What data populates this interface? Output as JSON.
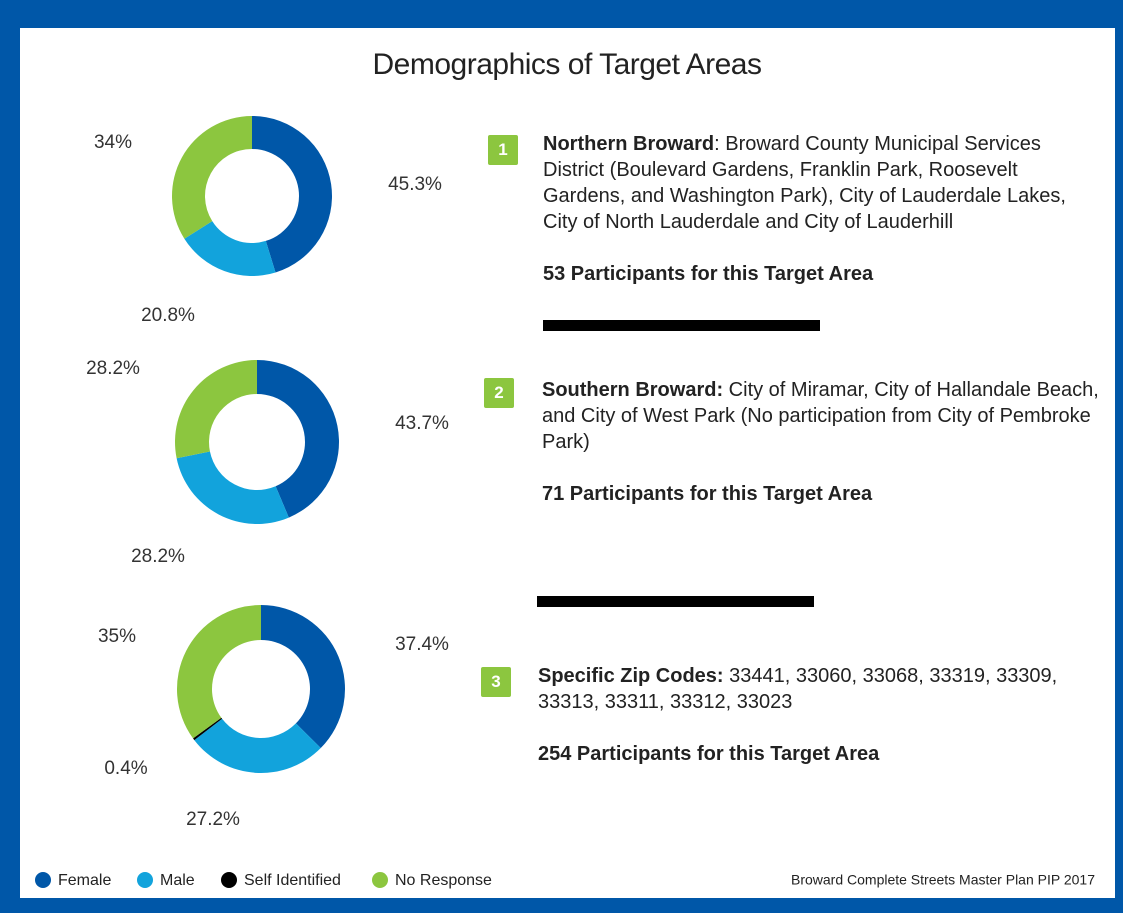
{
  "title": "Demographics of Target Areas",
  "legend": [
    {
      "name": "Female",
      "color": "#0057a8"
    },
    {
      "name": "Male",
      "color": "#12a3dc"
    },
    {
      "name": "Self Identified",
      "color": "#000000"
    },
    {
      "name": "No Response",
      "color": "#8cc63f"
    }
  ],
  "chart_data": [
    {
      "type": "pie",
      "donut": true,
      "values": [
        45.3,
        20.8,
        null,
        34
      ],
      "value_labels": [
        "45.3%",
        "20.8%",
        null,
        "34%"
      ]
    },
    {
      "type": "pie",
      "donut": true,
      "values": [
        43.7,
        28.2,
        null,
        28.2
      ],
      "value_labels": [
        "43.7%",
        "28.2%",
        null,
        "28.2%"
      ]
    },
    {
      "type": "pie",
      "donut": true,
      "values": [
        37.4,
        27.2,
        0.4,
        35
      ],
      "value_labels": [
        "37.4%",
        "27.2%",
        "0.4%",
        "35%"
      ]
    }
  ],
  "areas": [
    {
      "number": "1",
      "heading": "Northern Broward",
      "text": ": Broward County Municipal Services District (Boulevard Gardens, Franklin Park, Roosevelt Gardens, and Washington Park), City of Lauderdale Lakes, City of North Lauderdale and City of Lauderhill",
      "participants": "53 Participants for this Target Area"
    },
    {
      "number": "2",
      "heading": "Southern Broward:",
      "text": " City of Miramar, City of Hallandale Beach, and City of West Park (No participation from City of Pembroke Park)",
      "participants": "71 Participants for this Target Area"
    },
    {
      "number": "3",
      "heading": "Specific Zip Codes:",
      "text": " 33441, 33060, 33068, 33319, 33309, 33313, 33311, 33312, 33023",
      "participants": "254 Participants for this Target Area"
    }
  ],
  "source": "Broward Complete Streets Master Plan PIP 2017"
}
